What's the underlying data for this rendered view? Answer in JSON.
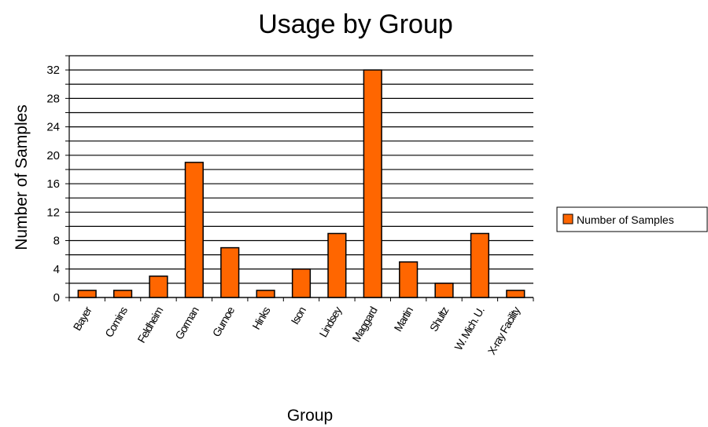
{
  "chart_data": {
    "type": "bar",
    "title": "Usage by Group",
    "xlabel": "Group",
    "ylabel": "Number of Samples",
    "categories": [
      "Bayer",
      "Comins",
      "Feldheim",
      "Gorman",
      "Gurnoe",
      "Hinks",
      "Ison",
      "Lindsey",
      "Maggard",
      "Martin",
      "Shultz",
      "W. Mich. U.",
      "X-ray Facility"
    ],
    "series": [
      {
        "name": "Number of Samples",
        "values": [
          1,
          1,
          3,
          19,
          7,
          1,
          4,
          9,
          32,
          5,
          2,
          9,
          1
        ]
      }
    ],
    "ylim": [
      0,
      34
    ],
    "yticks": [
      0,
      4,
      8,
      12,
      16,
      20,
      24,
      28,
      32
    ],
    "grid": true,
    "legend_position": "right",
    "colors": {
      "bar_fill": "#FF6600",
      "bar_stroke": "#000000",
      "grid": "#000000"
    }
  }
}
